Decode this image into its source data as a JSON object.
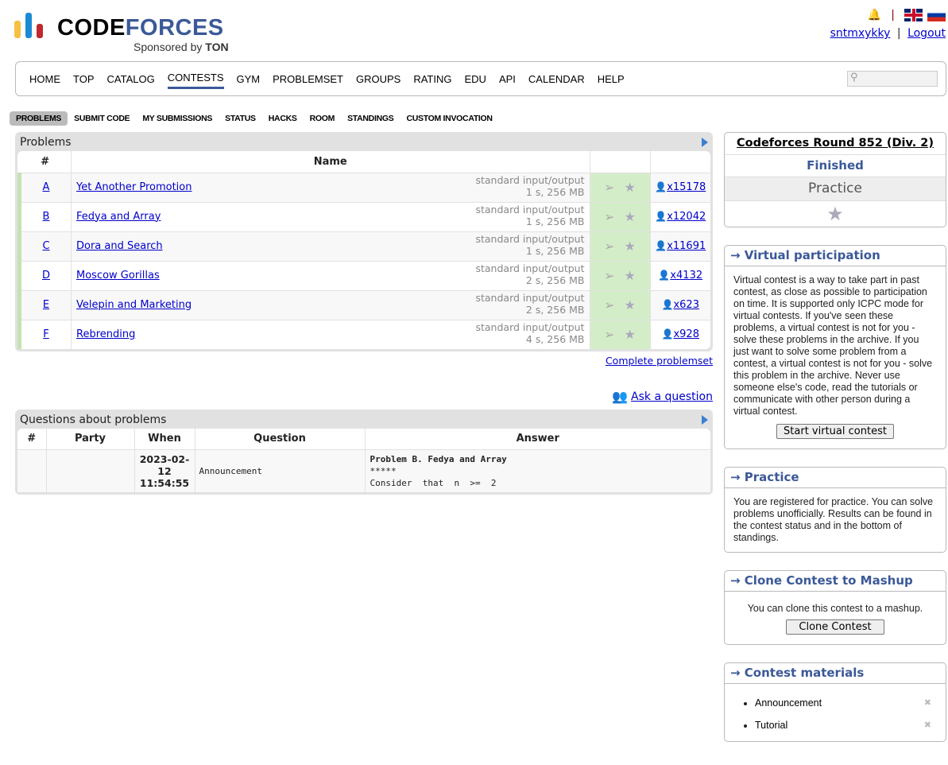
{
  "brand": {
    "name_part1": "CODE",
    "name_part2": "FORCES",
    "sponsor": "Sponsored by ",
    "sponsor_bold": "TON",
    "colors": {
      "yellow": "#f5c142",
      "blue": "#1a8ad4",
      "red": "#c1272d",
      "brand": "#3b5998"
    }
  },
  "header": {
    "username": "sntmxykky",
    "separator": "|",
    "logout": "Logout"
  },
  "menu": [
    "HOME",
    "TOP",
    "CATALOG",
    "CONTESTS",
    "GYM",
    "PROBLEMSET",
    "GROUPS",
    "RATING",
    "EDU",
    "API",
    "CALENDAR",
    "HELP"
  ],
  "menu_active": "CONTESTS",
  "search": {
    "placeholder": ""
  },
  "subnav": [
    "PROBLEMS",
    "SUBMIT CODE",
    "MY SUBMISSIONS",
    "STATUS",
    "HACKS",
    "ROOM",
    "STANDINGS",
    "CUSTOM INVOCATION"
  ],
  "problems": {
    "title": "Problems",
    "headers": [
      "#",
      "Name",
      "",
      ""
    ],
    "rows": [
      {
        "index": "A",
        "name": "Yet Another Promotion",
        "io": "standard input/output",
        "limits": "1 s, 256 MB",
        "solved": "x15178"
      },
      {
        "index": "B",
        "name": "Fedya and Array",
        "io": "standard input/output",
        "limits": "1 s, 256 MB",
        "solved": "x12042"
      },
      {
        "index": "C",
        "name": "Dora and Search",
        "io": "standard input/output",
        "limits": "1 s, 256 MB",
        "solved": "x11691"
      },
      {
        "index": "D",
        "name": "Moscow Gorillas",
        "io": "standard input/output",
        "limits": "2 s, 256 MB",
        "solved": "x4132"
      },
      {
        "index": "E",
        "name": "Velepin and Marketing",
        "io": "standard input/output",
        "limits": "2 s, 256 MB",
        "solved": "x623"
      },
      {
        "index": "F",
        "name": "Rebrending",
        "io": "standard input/output",
        "limits": "4 s, 256 MB",
        "solved": "x928"
      }
    ],
    "complete_link": "Complete problemset"
  },
  "ask": "Ask a question",
  "questions": {
    "title": "Questions about problems",
    "headers": [
      "#",
      "Party",
      "When",
      "Question",
      "Answer"
    ],
    "rows": [
      {
        "num": "",
        "party": "",
        "when": "2023-02-12 11:54:55",
        "question": "Announcement",
        "answer_line1": "Problem B. Fedya and Array",
        "answer_line2": "*****",
        "answer_line3": "Consider  that  n  >=  2"
      }
    ]
  },
  "sidebar": {
    "contest": {
      "name": "Codeforces Round 852 (Div. 2)",
      "status": "Finished",
      "mode": "Practice"
    },
    "virtual": {
      "title": "→ Virtual participation",
      "text": "Virtual contest is a way to take part in past contest, as close as possible to participation on time. It is supported only ICPC mode for virtual contests. If you've seen these problems, a virtual contest is not for you - solve these problems in the archive. If you just want to solve some problem from a contest, a virtual contest is not for you - solve this problem in the archive. Never use someone else's code, read the tutorials or communicate with other person during a virtual contest.",
      "button": "Start virtual contest"
    },
    "practice": {
      "title": "→ Practice",
      "text": "You are registered for practice. You can solve problems unofficially. Results can be found in the contest status and in the bottom of standings."
    },
    "clone": {
      "title": "→ Clone Contest to Mashup",
      "text": "You can clone this contest to a mashup.",
      "button": "Clone Contest"
    },
    "materials": {
      "title": "→ Contest materials",
      "items": [
        "Announcement",
        "Tutorial"
      ]
    }
  }
}
